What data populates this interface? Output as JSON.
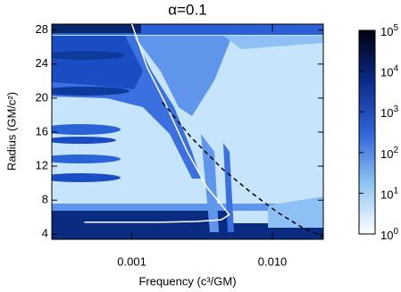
{
  "chart_data": {
    "type": "line",
    "title": "α=0.1",
    "xlabel": "Frequency (c³/GM)",
    "ylabel": "Radius (GM/c²)",
    "xscale": "log",
    "xlim": [
      0.00027,
      0.023
    ],
    "xticks": [
      0.001,
      {
        "value": 0.01,
        "label": "0.010"
      }
    ],
    "ylim": [
      3.4,
      28.7
    ],
    "yticks": [
      4,
      8,
      12,
      16,
      20,
      24,
      28
    ],
    "series": [
      {
        "color": "#ffffff",
        "dash": false,
        "x": [
          0.001,
          0.00128,
          0.00172,
          0.00248,
          0.00343,
          0.00446,
          0.00494,
          0.00433,
          0.00287,
          0.0016,
          0.00046
        ],
        "y": [
          28.7,
          23.7,
          19.5,
          13.7,
          9.5,
          7.2,
          6.3,
          5.7,
          5.5,
          5.4,
          5.4
        ]
      },
      {
        "color": "#000000",
        "dash": true,
        "x": [
          0.00165,
          0.00267,
          0.00446,
          0.00693,
          0.0108,
          0.0166,
          0.0231
        ],
        "y": [
          19.5,
          15.3,
          11.6,
          9.0,
          6.6,
          4.7,
          3.7
        ]
      }
    ],
    "colorbar": {
      "scale": "log",
      "lim": [
        1,
        100000
      ],
      "ticks": [
        {
          "value": 1,
          "label": "10",
          "sup": "0"
        },
        {
          "value": 10,
          "label": "10",
          "sup": "1"
        },
        {
          "value": 100,
          "label": "10",
          "sup": "2"
        },
        {
          "value": 1000,
          "label": "10",
          "sup": "3"
        },
        {
          "value": 10000,
          "label": "10",
          "sup": "4"
        },
        {
          "value": 100000,
          "label": "10",
          "sup": "5"
        }
      ]
    }
  }
}
